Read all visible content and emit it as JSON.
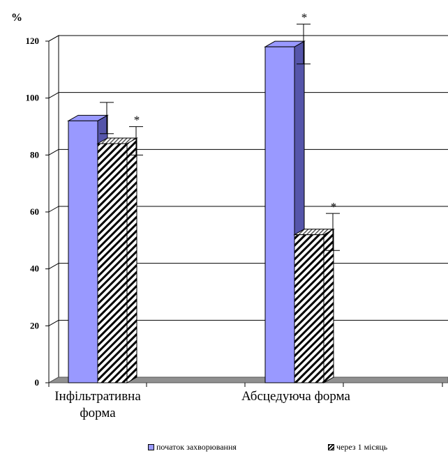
{
  "chart_data": {
    "type": "bar",
    "ylabel": "%",
    "ylim": [
      0,
      120
    ],
    "yticks": [
      "0",
      "20",
      "40",
      "60",
      "80",
      "100",
      "120"
    ],
    "categories": [
      "Інфільтративна форма",
      "Абсцедуюча форма"
    ],
    "category_lines": [
      [
        "Інфільтративна",
        "форма"
      ],
      [
        "Абсцедуюча форма"
      ]
    ],
    "series": [
      {
        "name": "початок захворювання",
        "values": [
          92,
          118
        ],
        "errors": [
          5.5,
          7
        ],
        "marks": [
          "",
          "*"
        ],
        "color": "#9999ff",
        "side_color": "#5555aa",
        "pattern": "solid"
      },
      {
        "name": "через 1 місяць",
        "values": [
          84,
          52
        ],
        "errors": [
          5,
          6.5
        ],
        "marks": [
          "*",
          "*"
        ],
        "color": "#ffffff",
        "side_color": "#444444",
        "pattern": "diagonal-hatch"
      }
    ],
    "grid": true,
    "legend_position": "bottom"
  }
}
